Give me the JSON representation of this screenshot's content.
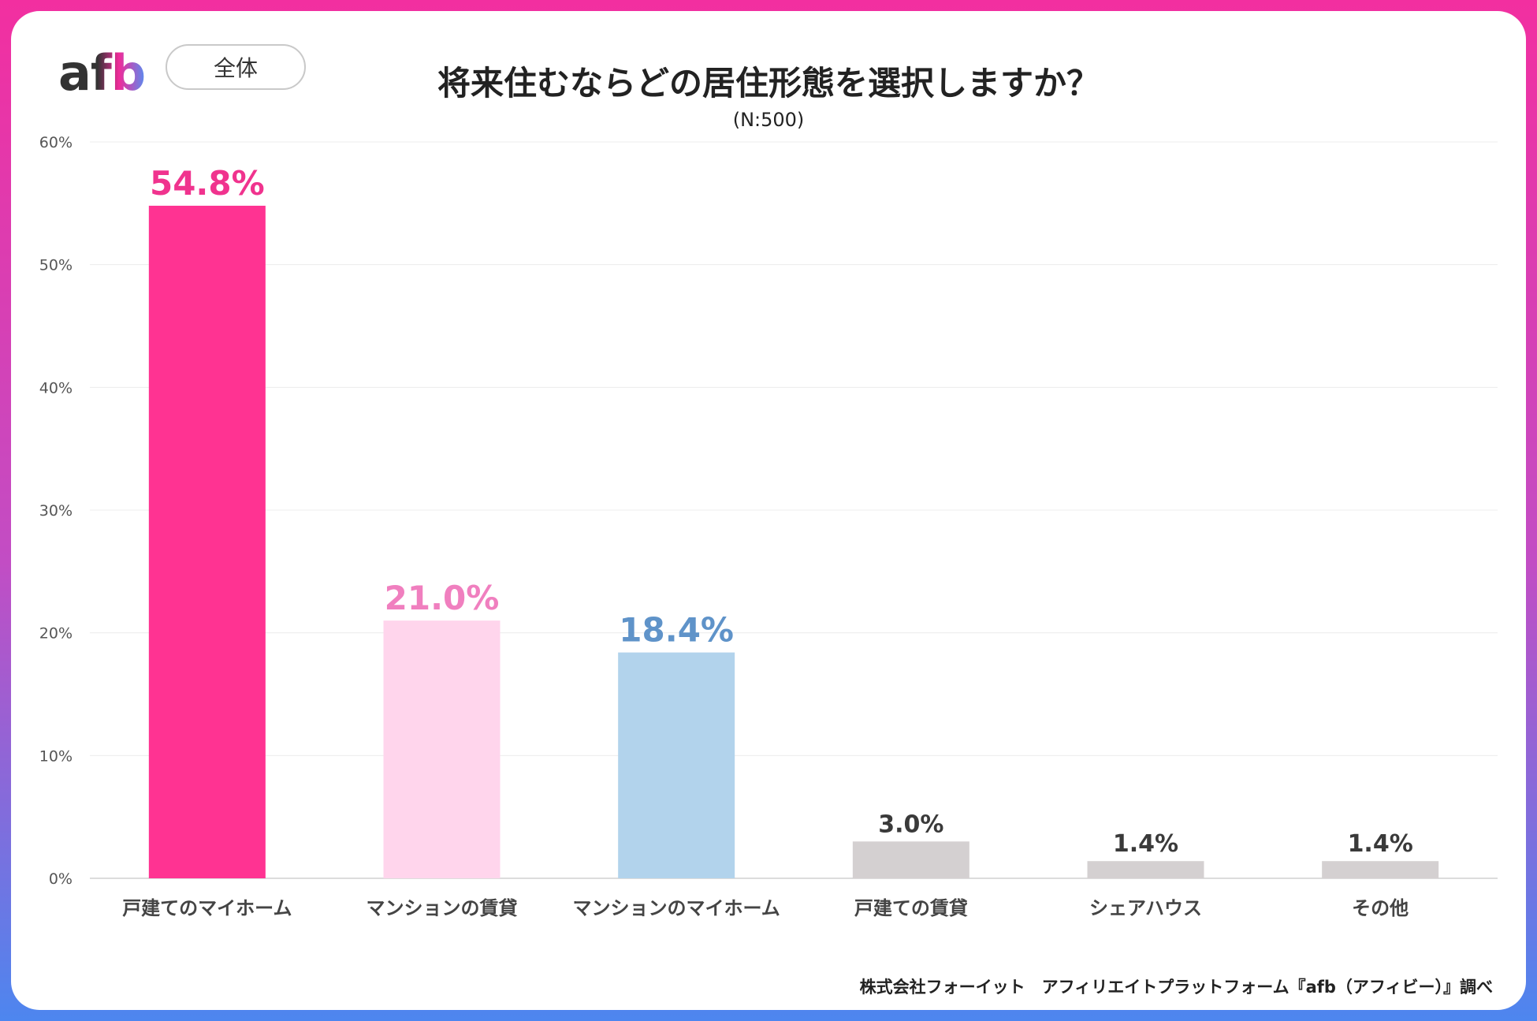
{
  "brand": {
    "logo_text": "afb",
    "scope_label": "全体"
  },
  "chart_data": {
    "type": "bar",
    "title": "将来住むならどの居住形態を選択しますか？",
    "subtitle": "(N:500)",
    "categories": [
      "戸建てのマイホーム",
      "マンションの賃貸",
      "マンションのマイホーム",
      "戸建ての賃貸",
      "シェアハウス",
      "その他"
    ],
    "values": [
      54.8,
      21.0,
      18.4,
      3.0,
      1.4,
      1.4
    ],
    "data_labels": [
      "54.8%",
      "21.0%",
      "18.4%",
      "3.0%",
      "1.4%",
      "1.4%"
    ],
    "bar_colors": [
      "#ff3392",
      "#ffd5ec",
      "#b2d3ec",
      "#d4d0d1",
      "#d4d0d1",
      "#d4d0d1"
    ],
    "label_colors": [
      "#f0338e",
      "#f07fbf",
      "#5f93c9",
      "#3a3a3a",
      "#3a3a3a",
      "#3a3a3a"
    ],
    "ylim": [
      0,
      60
    ],
    "yticks": [
      0,
      10,
      20,
      30,
      40,
      50,
      60
    ],
    "ytick_labels": [
      "0%",
      "10%",
      "20%",
      "30%",
      "40%",
      "50%",
      "60%"
    ],
    "grid": true,
    "legend": "none"
  },
  "source": "株式会社フォーイット　アフィリエイトプラットフォーム『afb（アフィビー）』調べ"
}
